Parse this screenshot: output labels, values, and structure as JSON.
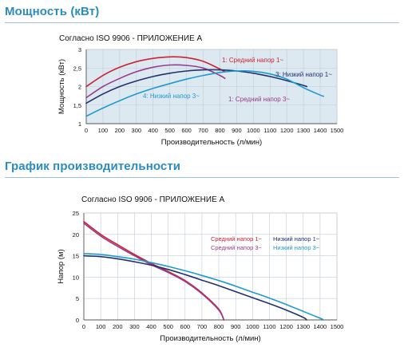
{
  "sections": {
    "power_title": "Мощность (кВт)",
    "performance_title": "График производительности"
  },
  "chart_data": [
    {
      "type": "line",
      "title": "Согласно ISO 9906 - ПРИЛОЖЕНИЕ А",
      "xlabel": "Производительность (л/мин)",
      "ylabel": "Мощность (кВт)",
      "xlim": [
        0,
        1500
      ],
      "ylim": [
        1,
        3
      ],
      "xticks": [
        0,
        100,
        200,
        300,
        400,
        500,
        600,
        700,
        800,
        900,
        1000,
        1100,
        1200,
        1300,
        1400,
        1500
      ],
      "yticks": [
        1,
        1.5,
        2,
        2.5,
        3
      ],
      "ytick_labels": [
        "1",
        "1,5",
        "2",
        "2,5",
        "3"
      ],
      "plot_background": "#dde9f1",
      "grid": true,
      "series": [
        {
          "name": "1: Средний напор 1~",
          "color": "#cc2233",
          "x": [
            0,
            100,
            200,
            300,
            400,
            500,
            600,
            700,
            800,
            830
          ],
          "y": [
            2.0,
            2.3,
            2.52,
            2.67,
            2.76,
            2.8,
            2.78,
            2.68,
            2.47,
            2.4
          ]
        },
        {
          "name": "1: Средний напор 3~",
          "color": "#9a3a8a",
          "x": [
            0,
            100,
            200,
            300,
            400,
            500,
            600,
            700,
            800,
            830
          ],
          "y": [
            1.7,
            2.0,
            2.22,
            2.4,
            2.52,
            2.58,
            2.57,
            2.5,
            2.3,
            2.22
          ]
        },
        {
          "name": "3: Низкий напор 1~",
          "color": "#22306e",
          "x": [
            0,
            100,
            200,
            300,
            400,
            500,
            600,
            700,
            800,
            900,
            1000,
            1100,
            1200,
            1300,
            1320
          ],
          "y": [
            1.55,
            1.8,
            2.0,
            2.15,
            2.27,
            2.36,
            2.42,
            2.45,
            2.45,
            2.42,
            2.36,
            2.27,
            2.16,
            2.03,
            2.0
          ]
        },
        {
          "name": "4: Низкий напор 3~",
          "color": "#1e9ad0",
          "x": [
            0,
            100,
            200,
            300,
            400,
            500,
            600,
            700,
            800,
            900,
            1000,
            1100,
            1200,
            1300,
            1400,
            1420
          ],
          "y": [
            1.2,
            1.42,
            1.62,
            1.8,
            1.95,
            2.08,
            2.2,
            2.3,
            2.38,
            2.42,
            2.41,
            2.34,
            2.2,
            1.97,
            1.77,
            1.74
          ]
        }
      ],
      "annotations": [
        "1: Средний напор 1~",
        "3: Низкий напор 1~",
        "4: Низкий напор 3~",
        "1: Средний напор 3~"
      ]
    },
    {
      "type": "line",
      "title": "Согласно ISO 9906 - ПРИЛОЖЕНИЕ А",
      "xlabel": "Производительность (л/мин)",
      "ylabel": "Напор (м)",
      "xlim": [
        0,
        1500
      ],
      "ylim": [
        0,
        25
      ],
      "xticks": [
        0,
        100,
        200,
        300,
        400,
        500,
        600,
        700,
        800,
        900,
        1000,
        1100,
        1200,
        1300,
        1400,
        1500
      ],
      "yticks": [
        0,
        5,
        10,
        15,
        20,
        25
      ],
      "plot_background": "#ffffff",
      "grid": true,
      "legend_position": "top-right",
      "series": [
        {
          "name": "Средний напор 1~",
          "color": "#cc2233",
          "x": [
            0,
            100,
            200,
            300,
            400,
            500,
            600,
            700,
            800,
            830
          ],
          "y": [
            23,
            20,
            17.6,
            15.3,
            13.2,
            11.3,
            9.2,
            6.3,
            2.5,
            0
          ]
        },
        {
          "name": "Средний напор 3~",
          "color": "#9a3a8a",
          "x": [
            0,
            100,
            200,
            300,
            400,
            500,
            600,
            700,
            800,
            830
          ],
          "y": [
            22.6,
            19.6,
            17.2,
            15.0,
            12.9,
            11.1,
            9.0,
            6.1,
            2.3,
            0
          ]
        },
        {
          "name": "Низкий напор 1~",
          "color": "#22306e",
          "x": [
            0,
            100,
            200,
            300,
            400,
            500,
            600,
            700,
            800,
            900,
            1000,
            1100,
            1200,
            1300,
            1320
          ],
          "y": [
            15,
            14.8,
            14.3,
            13.6,
            12.8,
            11.8,
            10.6,
            9.3,
            8.0,
            6.6,
            5.2,
            3.8,
            2.3,
            0.6,
            0
          ]
        },
        {
          "name": "Низкий напор 3~",
          "color": "#1e9ad0",
          "x": [
            0,
            100,
            200,
            300,
            400,
            500,
            600,
            700,
            800,
            900,
            1000,
            1100,
            1200,
            1300,
            1400,
            1420
          ],
          "y": [
            15.5,
            15.3,
            14.8,
            14.2,
            13.4,
            12.5,
            11.5,
            10.4,
            9.2,
            7.9,
            6.5,
            5.1,
            3.6,
            2.0,
            0.4,
            0
          ]
        }
      ]
    }
  ]
}
